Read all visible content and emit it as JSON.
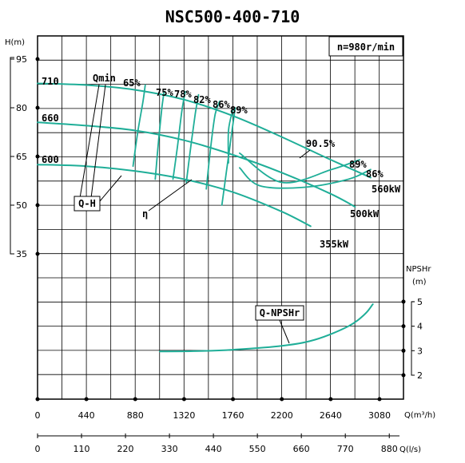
{
  "chart_data": {
    "type": "line",
    "title": "NSC500-400-710",
    "speed_label": "n=980r/min",
    "axes": {
      "head": {
        "label": "H(m)",
        "ticks": [
          95,
          80,
          65,
          50,
          35
        ],
        "range": [
          35,
          95
        ]
      },
      "npshr": {
        "label_line1": "NPSHr",
        "label_line2": "(m)",
        "ticks": [
          5,
          4,
          3,
          2
        ],
        "range": [
          2,
          5
        ]
      },
      "flow_m3h": {
        "label": "Q(m³/h)",
        "ticks": [
          0,
          440,
          880,
          1320,
          1760,
          2200,
          2640,
          3080
        ],
        "range": [
          0,
          3300
        ]
      },
      "flow_ls": {
        "label": "Q(l/s)",
        "ticks": [
          0,
          110,
          220,
          330,
          440,
          550,
          660,
          770,
          880
        ]
      }
    },
    "head_curves": [
      {
        "name": "710",
        "points": [
          [
            0,
            87.5
          ],
          [
            440,
            87
          ],
          [
            880,
            85.5
          ],
          [
            1320,
            82.5
          ],
          [
            1760,
            77.5
          ],
          [
            2200,
            71
          ],
          [
            2640,
            64
          ],
          [
            3000,
            58.5
          ]
        ]
      },
      {
        "name": "660",
        "points": [
          [
            0,
            75.5
          ],
          [
            440,
            74.5
          ],
          [
            880,
            73
          ],
          [
            1320,
            70
          ],
          [
            1760,
            65.5
          ],
          [
            2200,
            60
          ],
          [
            2640,
            53.5
          ],
          [
            2860,
            49.5
          ]
        ]
      },
      {
        "name": "600",
        "points": [
          [
            0,
            62.5
          ],
          [
            440,
            62
          ],
          [
            880,
            60.5
          ],
          [
            1320,
            58
          ],
          [
            1760,
            54
          ],
          [
            2200,
            48
          ],
          [
            2460,
            43.5
          ]
        ]
      }
    ],
    "efficiency_labels": [
      "65%",
      "75%",
      "78%",
      "82%",
      "86%",
      "89%",
      "90.5%",
      "89%",
      "86%"
    ],
    "efficiency_lines": [
      {
        "points": [
          [
            1720,
            63
          ],
          [
            1720,
            73
          ],
          [
            1760,
            79.5
          ]
        ]
      },
      {
        "points": [
          [
            1820,
            61.5
          ],
          [
            2000,
            56
          ],
          [
            2400,
            55.5
          ],
          [
            2800,
            58
          ],
          [
            3000,
            61
          ]
        ]
      },
      {
        "points": [
          [
            1820,
            66
          ],
          [
            2200,
            57
          ],
          [
            2650,
            61
          ],
          [
            2900,
            64
          ]
        ]
      }
    ],
    "iso_lines": [
      {
        "points": [
          [
            860,
            62
          ],
          [
            900,
            72
          ],
          [
            950,
            82
          ],
          [
            970,
            87
          ]
        ]
      },
      {
        "points": [
          [
            1060,
            58
          ],
          [
            1090,
            70
          ],
          [
            1120,
            80
          ],
          [
            1140,
            85
          ]
        ]
      },
      {
        "points": [
          [
            1220,
            58
          ],
          [
            1260,
            68
          ],
          [
            1300,
            79
          ],
          [
            1330,
            85
          ]
        ]
      },
      {
        "points": [
          [
            1340,
            57
          ],
          [
            1380,
            68
          ],
          [
            1420,
            78
          ],
          [
            1450,
            84
          ]
        ]
      },
      {
        "points": [
          [
            1520,
            55
          ],
          [
            1560,
            68
          ],
          [
            1600,
            78
          ],
          [
            1640,
            82
          ]
        ]
      },
      {
        "points": [
          [
            1660,
            50
          ],
          [
            1700,
            60
          ],
          [
            1740,
            70
          ],
          [
            1780,
            80
          ]
        ]
      }
    ],
    "power_labels": [
      "560kW",
      "500kW",
      "355kW"
    ],
    "qmin_label": "Qmin",
    "eta_label": "η",
    "qh_label": "Q-H",
    "npshr_curve": {
      "name": "Q-NPSHr",
      "points": [
        [
          1100,
          2.97
        ],
        [
          1400,
          2.98
        ],
        [
          1760,
          3.04
        ],
        [
          2200,
          3.2
        ],
        [
          2500,
          3.45
        ],
        [
          2800,
          4.0
        ],
        [
          2950,
          4.5
        ],
        [
          3020,
          4.9
        ]
      ]
    }
  }
}
